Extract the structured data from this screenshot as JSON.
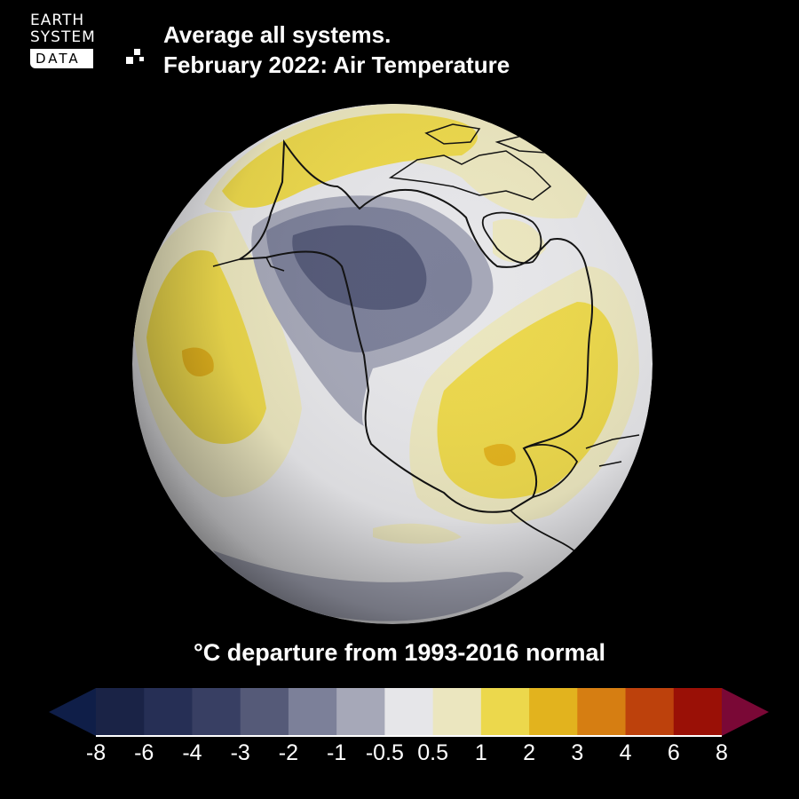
{
  "logo": {
    "line1": "EARTH",
    "line2": "SYSTEM",
    "line3": "DATA"
  },
  "title": {
    "line1": "Average all systems.",
    "line2": "February 2022: Air Temperature"
  },
  "legend": {
    "title": "°C departure from 1993-2016 normal",
    "ticks": [
      "-8",
      "-6",
      "-4",
      "-3",
      "-2",
      "-1",
      "-0.5",
      "0.5",
      "1",
      "2",
      "3",
      "4",
      "6",
      "8"
    ],
    "colors": [
      "#1a2346",
      "#262f55",
      "#383f63",
      "#555a78",
      "#7c8099",
      "#a6a8b8",
      "#e6e6e9",
      "#ebe6bf",
      "#ecd84c",
      "#e2b31e",
      "#d67e12",
      "#bd410c",
      "#9a1006"
    ],
    "under_color": "#0f1e48",
    "over_color": "#7a0836"
  },
  "map": {
    "projection": "orthographic globe centered on North America",
    "colors": {
      "neutral": "#e6e6e9",
      "cool_light": "#a6a8b8",
      "cool_mid": "#7c8099",
      "cool_strong": "#555a78",
      "warm_light": "#ebe6bf",
      "warm_mid": "#ecd84c",
      "warm_strong": "#e2b31e",
      "coastline": "#111111"
    }
  }
}
